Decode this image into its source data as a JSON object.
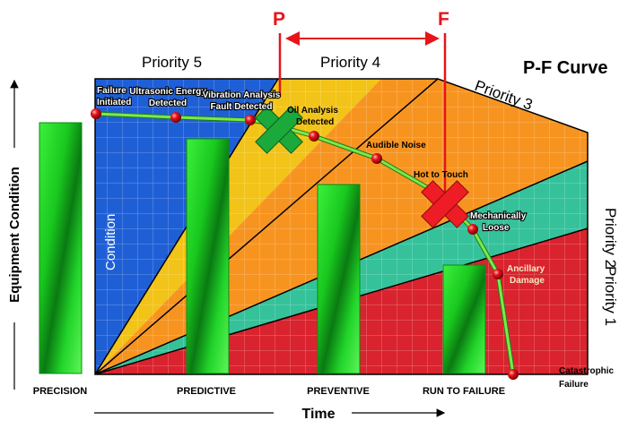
{
  "title": "P-F Curve",
  "markers": {
    "p_label": "P",
    "f_label": "F"
  },
  "axes": {
    "y_label": "Equipment Condition",
    "x_label": "Time"
  },
  "priorities": {
    "p5": "Priority 5",
    "p4": "Priority 4",
    "p3": "Priority 3",
    "p2": "Priority 2",
    "p1": "Priority 1"
  },
  "condition_label": "Condition",
  "points": [
    {
      "line1": "Failure",
      "line2": "Initiated"
    },
    {
      "line1": "Ultrasonic Energy",
      "line2": "Detected"
    },
    {
      "line1": "Vibration Analysis",
      "line2": "Fault Detected"
    },
    {
      "line1": "Oil Analysis",
      "line2": "Detected"
    },
    {
      "line1": "Audible Noise",
      "line2": ""
    },
    {
      "line1": "Hot to Touch",
      "line2": ""
    },
    {
      "line1": "Mechanically",
      "line2": "Loose"
    },
    {
      "line1": "Ancillary",
      "line2": "Damage"
    },
    {
      "line1": "Catastrophic",
      "line2": "Failure"
    }
  ],
  "strategies": [
    "PRECISION",
    "PREDICTIVE",
    "PREVENTIVE",
    "RUN TO FAILURE"
  ],
  "colors": {
    "blue": "#1f5fd6",
    "yellow": "#f2c318",
    "orange": "#f79420",
    "teal": "#35c29a",
    "red": "#d9232e",
    "bar_green": "#22d52a",
    "curve_green": "#7de84a",
    "marker_red": "#e8141b",
    "p_mark_green": "#1aa93a",
    "f_mark_red": "#ee1c24"
  }
}
